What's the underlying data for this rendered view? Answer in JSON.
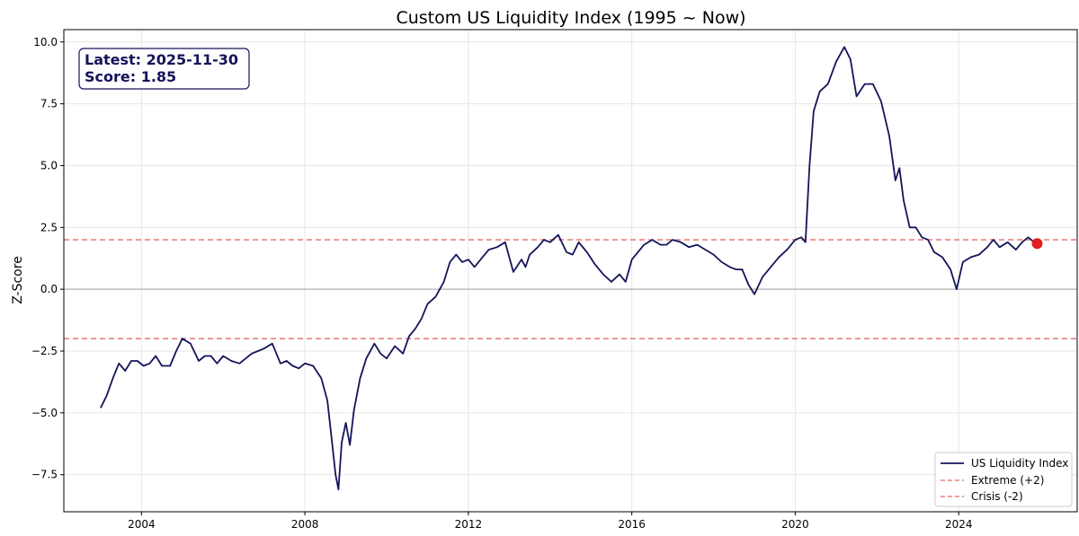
{
  "chart_data": {
    "type": "line",
    "title": "Custom US Liquidity Index (1995 ~ Now)",
    "xlabel": "",
    "ylabel": "Z-Score",
    "xlim": [
      2002.1,
      2026.9
    ],
    "ylim": [
      -9.0,
      10.5
    ],
    "x_ticks": [
      2004,
      2008,
      2012,
      2016,
      2020,
      2024
    ],
    "y_ticks": [
      -7.5,
      -5.0,
      -2.5,
      0.0,
      2.5,
      5.0,
      7.5,
      10.0
    ],
    "x_tick_labels": [
      "2004",
      "2008",
      "2012",
      "2016",
      "2020",
      "2024"
    ],
    "y_tick_labels": [
      "−7.5",
      "−5.0",
      "−2.5",
      "0.0",
      "2.5",
      "5.0",
      "7.5",
      "10.0"
    ],
    "grid": true,
    "legend_position": "bottom-right",
    "colors": {
      "line": "#14145a",
      "threshold": "#e88080",
      "latest_marker": "#e02020",
      "zero_line": "#b0b0b0",
      "annotation_text": "#14145a"
    },
    "series": [
      {
        "name": "US Liquidity Index",
        "x": [
          2003.0,
          2003.15,
          2003.3,
          2003.45,
          2003.6,
          2003.75,
          2003.9,
          2004.05,
          2004.2,
          2004.35,
          2004.5,
          2004.7,
          2004.85,
          2005.0,
          2005.2,
          2005.4,
          2005.55,
          2005.7,
          2005.85,
          2006.0,
          2006.2,
          2006.4,
          2006.55,
          2006.7,
          2006.85,
          2007.0,
          2007.2,
          2007.4,
          2007.55,
          2007.7,
          2007.85,
          2008.0,
          2008.2,
          2008.4,
          2008.55,
          2008.65,
          2008.75,
          2008.82,
          2008.9,
          2009.0,
          2009.1,
          2009.2,
          2009.35,
          2009.5,
          2009.7,
          2009.85,
          2010.0,
          2010.2,
          2010.4,
          2010.55,
          2010.7,
          2010.85,
          2011.0,
          2011.2,
          2011.4,
          2011.55,
          2011.7,
          2011.85,
          2012.0,
          2012.15,
          2012.3,
          2012.5,
          2012.7,
          2012.9,
          2013.1,
          2013.3,
          2013.4,
          2013.5,
          2013.7,
          2013.85,
          2014.0,
          2014.2,
          2014.4,
          2014.55,
          2014.7,
          2014.9,
          2015.1,
          2015.3,
          2015.5,
          2015.7,
          2015.85,
          2016.0,
          2016.15,
          2016.3,
          2016.5,
          2016.7,
          2016.85,
          2017.0,
          2017.2,
          2017.4,
          2017.6,
          2017.8,
          2018.0,
          2018.2,
          2018.4,
          2018.55,
          2018.7,
          2018.85,
          2019.0,
          2019.2,
          2019.4,
          2019.6,
          2019.8,
          2020.0,
          2020.15,
          2020.25,
          2020.35,
          2020.45,
          2020.6,
          2020.8,
          2021.0,
          2021.2,
          2021.35,
          2021.5,
          2021.7,
          2021.9,
          2022.1,
          2022.3,
          2022.45,
          2022.55,
          2022.65,
          2022.8,
          2022.95,
          2023.1,
          2023.25,
          2023.4,
          2023.6,
          2023.8,
          2023.95,
          2024.1,
          2024.3,
          2024.5,
          2024.7,
          2024.85,
          2025.0,
          2025.2,
          2025.4,
          2025.55,
          2025.7,
          2025.85,
          2025.92
        ],
        "y": [
          -4.8,
          -4.3,
          -3.6,
          -3.0,
          -3.3,
          -2.9,
          -2.9,
          -3.1,
          -3.0,
          -2.7,
          -3.1,
          -3.1,
          -2.5,
          -2.0,
          -2.2,
          -2.9,
          -2.7,
          -2.7,
          -3.0,
          -2.7,
          -2.9,
          -3.0,
          -2.8,
          -2.6,
          -2.5,
          -2.4,
          -2.2,
          -3.0,
          -2.9,
          -3.1,
          -3.2,
          -3.0,
          -3.1,
          -3.6,
          -4.5,
          -6.0,
          -7.5,
          -8.1,
          -6.2,
          -5.4,
          -6.3,
          -4.9,
          -3.6,
          -2.8,
          -2.2,
          -2.6,
          -2.8,
          -2.3,
          -2.6,
          -1.9,
          -1.6,
          -1.2,
          -0.6,
          -0.3,
          0.3,
          1.1,
          1.4,
          1.1,
          1.2,
          0.9,
          1.2,
          1.6,
          1.7,
          1.9,
          0.7,
          1.2,
          0.9,
          1.4,
          1.7,
          2.0,
          1.9,
          2.2,
          1.5,
          1.4,
          1.9,
          1.5,
          1.0,
          0.6,
          0.3,
          0.6,
          0.3,
          1.2,
          1.5,
          1.8,
          2.0,
          1.8,
          1.8,
          2.0,
          1.9,
          1.7,
          1.8,
          1.6,
          1.4,
          1.1,
          0.9,
          0.8,
          0.8,
          0.2,
          -0.2,
          0.5,
          0.9,
          1.3,
          1.6,
          2.0,
          2.1,
          1.9,
          5.0,
          7.2,
          8.0,
          8.3,
          9.2,
          9.8,
          9.3,
          7.8,
          8.3,
          8.3,
          7.6,
          6.2,
          4.4,
          4.9,
          3.6,
          2.5,
          2.5,
          2.1,
          2.0,
          1.5,
          1.3,
          0.8,
          0.0,
          1.1,
          1.3,
          1.4,
          1.7,
          2.0,
          1.7,
          1.9,
          1.6,
          1.9,
          2.1,
          1.9,
          1.85
        ]
      }
    ],
    "hlines": [
      {
        "name": "Extreme (+2)",
        "y": 2.0
      },
      {
        "name": "Crisis (-2)",
        "y": -2.0
      }
    ],
    "zero_line": 0.0,
    "latest_point": {
      "x": 2025.92,
      "y": 1.85
    },
    "annotation": {
      "line1": "Latest: 2025-11-30",
      "line2": "Score: 1.85"
    },
    "legend": [
      {
        "label": "US Liquidity Index",
        "style": "solid"
      },
      {
        "label": "Extreme (+2)",
        "style": "dashed"
      },
      {
        "label": "Crisis (-2)",
        "style": "dashed"
      }
    ]
  }
}
